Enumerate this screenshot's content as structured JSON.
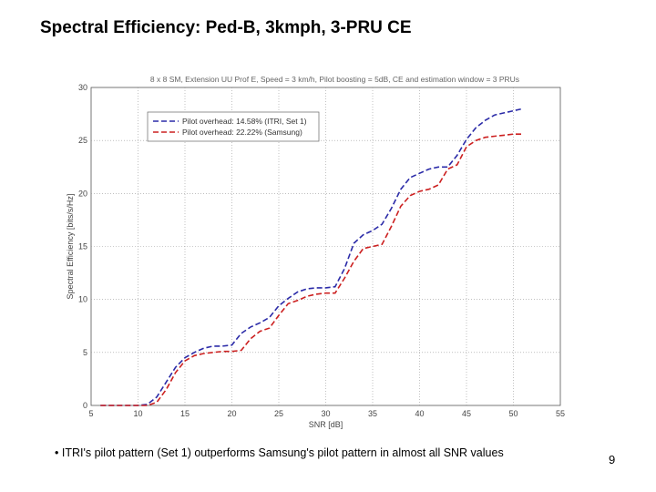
{
  "slide": {
    "title": "Spectral Efficiency: Ped-B, 3kmph, 3-PRU CE",
    "bullet": "• ITRI's pilot pattern (Set 1) outperforms Samsung's pilot pattern in almost all SNR values",
    "page_number": "9"
  },
  "chart_data": {
    "type": "line",
    "title": "8 x 8 SM, Extension UU Prof E, Speed = 3 km/h, Pilot boosting = 5dB, CE and estimation window = 3 PRUs",
    "xlabel": "SNR [dB]",
    "ylabel": "Spectral Efficiency [bits/s/Hz]",
    "xlim": [
      5,
      55
    ],
    "ylim": [
      0,
      30
    ],
    "xticks": [
      5,
      10,
      15,
      20,
      25,
      30,
      35,
      40,
      45,
      50,
      55
    ],
    "yticks": [
      0,
      5,
      10,
      15,
      20,
      25,
      30
    ],
    "grid": "dotted",
    "legend_position": "top-left",
    "series": [
      {
        "name": "Pilot overhead: 14.58% (ITRI, Set 1)",
        "color": "#2b2ba8",
        "dash": "dash",
        "x": [
          6,
          8,
          10,
          11,
          12,
          13,
          14,
          15,
          16,
          17,
          18,
          19,
          20,
          21,
          22,
          23,
          24,
          25,
          26,
          27,
          28,
          29,
          30,
          31,
          32,
          33,
          34,
          35,
          36,
          37,
          38,
          39,
          40,
          41,
          42,
          43,
          44,
          45,
          46,
          47,
          48,
          49,
          50,
          51
        ],
        "y": [
          0,
          0,
          0,
          0.1,
          0.8,
          2.2,
          3.6,
          4.5,
          5.0,
          5.4,
          5.6,
          5.6,
          5.7,
          6.8,
          7.4,
          7.8,
          8.3,
          9.4,
          10.1,
          10.7,
          11.0,
          11.1,
          11.1,
          11.2,
          12.9,
          15.3,
          16.1,
          16.5,
          17.1,
          18.6,
          20.4,
          21.5,
          21.9,
          22.3,
          22.5,
          22.5,
          23.6,
          25.1,
          26.2,
          26.9,
          27.4,
          27.6,
          27.8,
          28.0
        ]
      },
      {
        "name": "Pilot overhead: 22.22% (Samsung)",
        "color": "#cc2020",
        "dash": "dash",
        "x": [
          6,
          8,
          10,
          11,
          12,
          13,
          14,
          15,
          16,
          17,
          18,
          19,
          20,
          21,
          22,
          23,
          24,
          25,
          26,
          27,
          28,
          29,
          30,
          31,
          32,
          33,
          34,
          35,
          36,
          37,
          38,
          39,
          40,
          41,
          42,
          43,
          44,
          45,
          46,
          47,
          48,
          49,
          50,
          51
        ],
        "y": [
          0,
          0,
          0,
          0,
          0.3,
          1.5,
          3.1,
          4.2,
          4.7,
          4.9,
          5.0,
          5.1,
          5.1,
          5.2,
          6.3,
          7.0,
          7.3,
          8.5,
          9.6,
          9.9,
          10.3,
          10.5,
          10.6,
          10.6,
          12.0,
          13.6,
          14.8,
          15.0,
          15.2,
          16.9,
          18.8,
          19.8,
          20.2,
          20.4,
          20.8,
          22.3,
          22.7,
          24.4,
          25.0,
          25.3,
          25.4,
          25.5,
          25.6,
          25.6
        ]
      }
    ]
  }
}
